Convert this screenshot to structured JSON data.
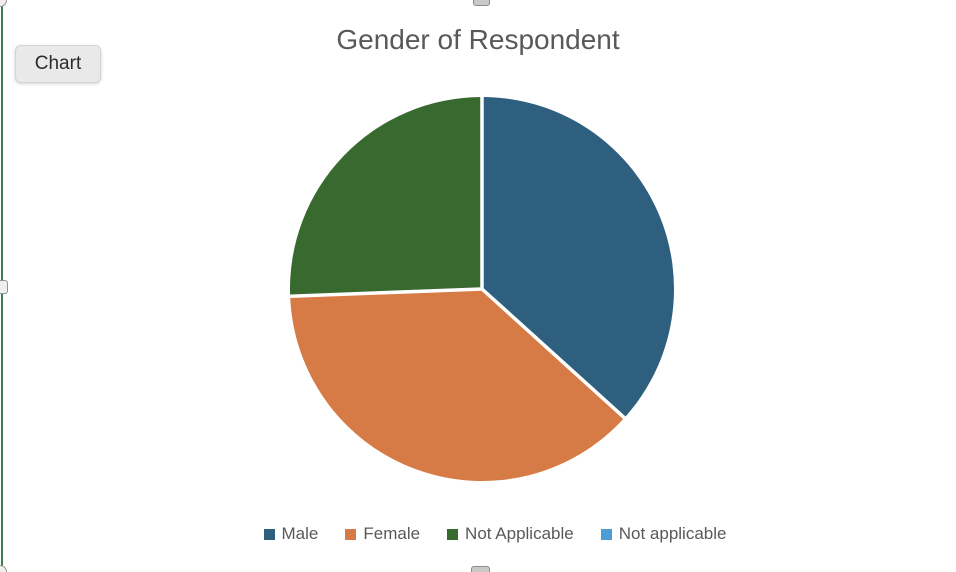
{
  "tooltip": {
    "label": "Chart"
  },
  "chart_data": {
    "type": "pie",
    "title": "Gender of Respondent",
    "categories": [
      "Male",
      "Female",
      "Not Applicable",
      "Not applicable"
    ],
    "values": [
      36.7,
      37.7,
      25.6,
      0
    ],
    "unit": "percent_of_total",
    "colors": [
      "#2E5F7F",
      "#D77B46",
      "#38692F",
      "#4D9ED6"
    ],
    "start_angle_deg": 0,
    "direction": "clockwise",
    "legend_position": "bottom",
    "slice_separator_color": "#FFFFFF"
  },
  "theme": {
    "background": "#FFFFFF",
    "text_color": "#595959",
    "selection_green": "#3C7A52",
    "tooltip_bg": "#E9E9E9",
    "tooltip_border": "#D4D4D4",
    "tooltip_text": "#2B2B2B",
    "handle_border": "#949494",
    "handle_fill": "#EFEFEF"
  }
}
